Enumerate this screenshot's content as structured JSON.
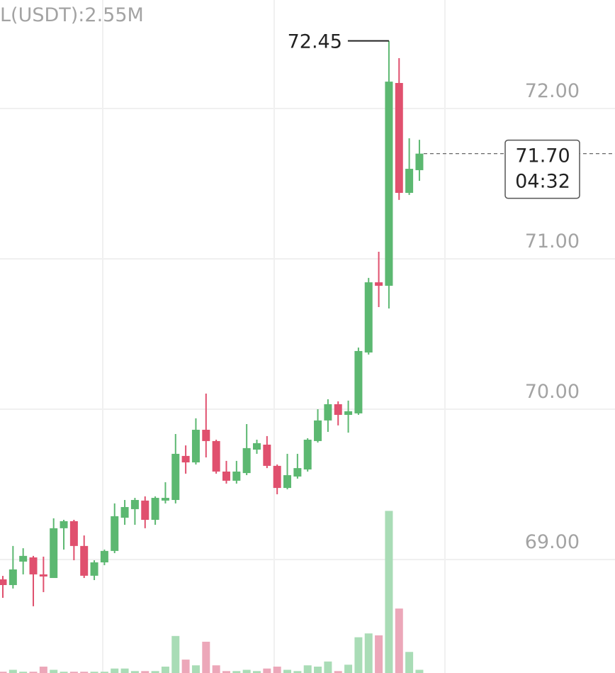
{
  "chart_data": {
    "type": "candlestick",
    "volume_label": "L(USDT):2.55M",
    "ylim": [
      68.245,
      72.722
    ],
    "yticks": [
      {
        "value": 72,
        "label": "72.00"
      },
      {
        "value": 71,
        "label": "71.00"
      },
      {
        "value": 70,
        "label": "70.00"
      },
      {
        "value": 69,
        "label": "69.00"
      }
    ],
    "grid": true,
    "up_color": "#5cb871",
    "down_color": "#e0506e",
    "volume_up_color": "#a9dcb6",
    "volume_down_color": "#eca7b9",
    "volume_ylim": [
      0,
      3
    ],
    "open": [
      68.868,
      68.83,
      68.986,
      69.014,
      68.901,
      68.877,
      69.208,
      69.255,
      69.09,
      68.892,
      68.981,
      69.057,
      69.278,
      69.335,
      69.392,
      69.264,
      69.392,
      69.396,
      69.689,
      69.646,
      69.863,
      69.788,
      69.585,
      69.524,
      69.575,
      69.731,
      69.764,
      69.623,
      69.476,
      69.552,
      69.599,
      69.788,
      69.925,
      70.033,
      69.962,
      69.972,
      70.377,
      70.844,
      70.821,
      72.17,
      71.439,
      71.59
    ],
    "high": [
      68.891,
      69.09,
      69.075,
      69.024,
      69.019,
      69.274,
      69.264,
      69.264,
      69.16,
      68.995,
      69.066,
      69.373,
      69.396,
      69.41,
      69.42,
      69.42,
      69.514,
      69.835,
      69.759,
      69.939,
      70.104,
      69.797,
      69.656,
      69.656,
      69.901,
      69.797,
      69.821,
      69.632,
      69.703,
      69.703,
      69.807,
      70.0,
      70.066,
      70.052,
      70.057,
      70.41,
      70.873,
      71.047,
      72.45,
      72.335,
      71.802,
      71.792
    ],
    "low": [
      68.745,
      68.807,
      68.901,
      68.689,
      68.783,
      68.877,
      69.066,
      68.995,
      68.877,
      68.863,
      68.962,
      69.042,
      69.231,
      69.231,
      69.208,
      69.231,
      69.373,
      69.373,
      69.571,
      69.632,
      69.679,
      69.571,
      69.505,
      69.505,
      69.561,
      69.703,
      69.608,
      69.434,
      69.467,
      69.538,
      69.585,
      69.778,
      69.849,
      69.892,
      69.844,
      69.962,
      70.363,
      70.679,
      70.67,
      71.392,
      71.425,
      71.519
    ],
    "close": [
      68.83,
      68.934,
      69.024,
      68.901,
      68.887,
      69.208,
      69.255,
      69.09,
      68.892,
      68.981,
      69.057,
      69.288,
      69.349,
      69.396,
      69.264,
      69.41,
      69.41,
      69.703,
      69.646,
      69.863,
      69.788,
      69.585,
      69.524,
      69.585,
      69.741,
      69.774,
      69.623,
      69.476,
      69.561,
      69.608,
      69.797,
      69.925,
      70.033,
      69.962,
      69.986,
      70.387,
      70.844,
      70.821,
      72.179,
      71.439,
      71.599,
      71.7
    ],
    "volume": [
      0.02,
      0.05,
      0.02,
      0.02,
      0.1,
      0.05,
      0.02,
      0.02,
      0.02,
      0.02,
      0.02,
      0.07,
      0.07,
      0.03,
      0.03,
      0.03,
      0.1,
      0.58,
      0.21,
      0.12,
      0.49,
      0.12,
      0.03,
      0.03,
      0.05,
      0.03,
      0.07,
      0.1,
      0.05,
      0.03,
      0.12,
      0.1,
      0.18,
      0.03,
      0.13,
      0.56,
      0.62,
      0.59,
      2.54,
      1.01,
      0.33,
      0.05
    ],
    "high_marker": {
      "value": 72.45,
      "label": "72.45"
    },
    "current_price": {
      "value": 71.7,
      "label": "71.70"
    },
    "countdown": "04:32"
  }
}
